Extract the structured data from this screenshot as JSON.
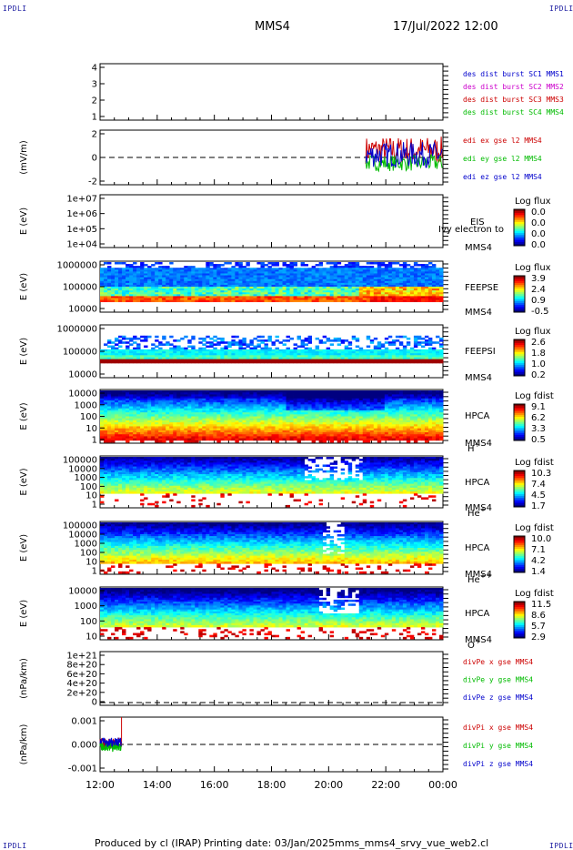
{
  "corner_label": "IPDLI",
  "header": {
    "spacecraft": "MMS4",
    "datetime": "17/Jul/2022 12:00"
  },
  "footer": {
    "produced_by": "Produced by cl (IRAP)",
    "printing_date": "Printing date: 03/Jan/2025",
    "script_name": "mms_mms4_srvy_vue_web2.cl"
  },
  "colors": {
    "mms1": "#0000cc",
    "mms2": "#cc00cc",
    "mms3": "#cc0000",
    "mms4": "#00bb00",
    "x_comp": "#cc0000",
    "y_comp": "#00bb00",
    "z_comp": "#0000cc"
  },
  "chart_data": [
    {
      "type": "line",
      "panel": "burst_intervals",
      "yticks": [
        "4",
        "3",
        "2",
        "1"
      ],
      "ylim": [
        0.5,
        4.5
      ],
      "legend": [
        {
          "text": "des dist burst SC1 MMS1",
          "color": "#0000cc"
        },
        {
          "text": "des dist burst SC2 MMS2",
          "color": "#cc00cc"
        },
        {
          "text": "des dist burst SC3 MMS3",
          "color": "#cc0000"
        },
        {
          "text": "des dist burst SC4 MMS4",
          "color": "#00bb00"
        }
      ],
      "series": []
    },
    {
      "type": "line",
      "panel": "edi_e_field",
      "ylabel": "(mV/m)",
      "yticks": [
        "2",
        "0",
        "-2"
      ],
      "ylim": [
        -3,
        3
      ],
      "xlim": [
        12,
        24
      ],
      "data_range_hours": [
        21.3,
        24.0
      ],
      "legend": [
        {
          "text": "edi ex gse l2 MMS4",
          "color": "#cc0000"
        },
        {
          "text": "edi ey gse l2 MMS4",
          "color": "#00bb00"
        },
        {
          "text": "edi ez gse l2 MMS4",
          "color": "#0000cc"
        }
      ],
      "series": [
        {
          "component": "x",
          "mean": 0.8,
          "amplitude": 1.5
        },
        {
          "component": "y",
          "mean": -0.6,
          "amplitude": 0.9
        },
        {
          "component": "z",
          "mean": 0.3,
          "amplitude": 1.4
        }
      ]
    },
    {
      "type": "heatmap",
      "panel": "eis",
      "ylabel": "E (eV)",
      "yticks": [
        "1e+07",
        "1e+06",
        "1e+05",
        "1e+04"
      ],
      "instrument": "EIS",
      "spacecraft": "MMS4",
      "overlay_text": "Ivy electron to",
      "colorbar_label": "Log flux",
      "colorbar_ticks": [
        "0.0",
        "0.0",
        "0.0",
        "0.0"
      ],
      "empty": true
    },
    {
      "type": "heatmap",
      "panel": "feeps_electron",
      "ylabel": "E (eV)",
      "yticks": [
        "1000000",
        "100000",
        "10000"
      ],
      "instrument": "FEEPSE",
      "spacecraft": "MMS4",
      "colorbar_label": "Log flux",
      "colorbar_ticks": [
        "3.9",
        "2.4",
        "0.9",
        "-0.5"
      ]
    },
    {
      "type": "heatmap",
      "panel": "feeps_ion",
      "ylabel": "E (eV)",
      "yticks": [
        "1000000",
        "100000",
        "10000"
      ],
      "instrument": "FEEPSI",
      "spacecraft": "MMS4",
      "colorbar_label": "Log flux",
      "colorbar_ticks": [
        "2.6",
        "1.8",
        "1.0",
        "0.2"
      ]
    },
    {
      "type": "heatmap",
      "panel": "hpca_h",
      "ylabel": "E (eV)",
      "yticks": [
        "10000",
        "1000",
        "100",
        "10",
        "1"
      ],
      "instrument": "HPCA",
      "spacecraft": "MMS4",
      "species": "H",
      "species_sup": "+",
      "colorbar_label": "Log fdist",
      "colorbar_ticks": [
        "9.1",
        "6.2",
        "3.3",
        "0.5"
      ]
    },
    {
      "type": "heatmap",
      "panel": "hpca_he1",
      "ylabel": "E (eV)",
      "yticks": [
        "100000",
        "10000",
        "1000",
        "100",
        "10",
        "1"
      ],
      "instrument": "HPCA",
      "spacecraft": "MMS4",
      "species": "He",
      "species_sup": "+",
      "colorbar_label": "Log fdist",
      "colorbar_ticks": [
        "10.3",
        "7.4",
        "4.5",
        "1.7"
      ]
    },
    {
      "type": "heatmap",
      "panel": "hpca_he2",
      "ylabel": "E (eV)",
      "yticks": [
        "100000",
        "10000",
        "1000",
        "100",
        "10",
        "1"
      ],
      "instrument": "HPCA",
      "spacecraft": "MMS4",
      "species": "He",
      "species_sup": "++",
      "colorbar_label": "Log fdist",
      "colorbar_ticks": [
        "10.0",
        "7.1",
        "4.2",
        "1.4"
      ]
    },
    {
      "type": "heatmap",
      "panel": "hpca_o",
      "ylabel": "E (eV)",
      "yticks": [
        "10000",
        "1000",
        "100",
        "10"
      ],
      "instrument": "HPCA",
      "spacecraft": "MMS4",
      "species": "O",
      "species_sup": "+",
      "colorbar_label": "Log fdist",
      "colorbar_ticks": [
        "11.5",
        "8.6",
        "5.7",
        "2.9"
      ]
    },
    {
      "type": "line",
      "panel": "div_pe",
      "ylabel": "(nPa/km)",
      "yticks": [
        "1e+21",
        "8e+20",
        "6e+20",
        "4e+20",
        "2e+20",
        "0"
      ],
      "ylim": [
        0,
        1e+21
      ],
      "legend": [
        {
          "text": "divPe x gse MMS4",
          "color": "#cc0000"
        },
        {
          "text": "divPe y gse MMS4",
          "color": "#00bb00"
        },
        {
          "text": "divPe z gse MMS4",
          "color": "#0000cc"
        }
      ],
      "series": []
    },
    {
      "type": "line",
      "panel": "div_pi",
      "ylabel": "(nPa/km)",
      "yticks": [
        "0.001",
        "0.000",
        "-0.001"
      ],
      "ylim": [
        -0.0012,
        0.0012
      ],
      "xlim": [
        12,
        24
      ],
      "data_range_hours": [
        12.0,
        12.75
      ],
      "legend": [
        {
          "text": "divPi x gse MMS4",
          "color": "#cc0000"
        },
        {
          "text": "divPi y gse MMS4",
          "color": "#00bb00"
        },
        {
          "text": "divPi z gse MMS4",
          "color": "#0000cc"
        }
      ],
      "series": [
        {
          "component": "x",
          "mean": 5e-05,
          "amplitude": 0.0002,
          "spike": 0.0016
        },
        {
          "component": "y",
          "mean": -0.0001,
          "amplitude": 0.0002
        },
        {
          "component": "z",
          "mean": 0.0001,
          "amplitude": 0.0002
        }
      ]
    }
  ],
  "x_axis": {
    "ticks": [
      "12:00",
      "14:00",
      "16:00",
      "18:00",
      "20:00",
      "22:00",
      "00:00"
    ],
    "range_hours": [
      12,
      24
    ]
  }
}
